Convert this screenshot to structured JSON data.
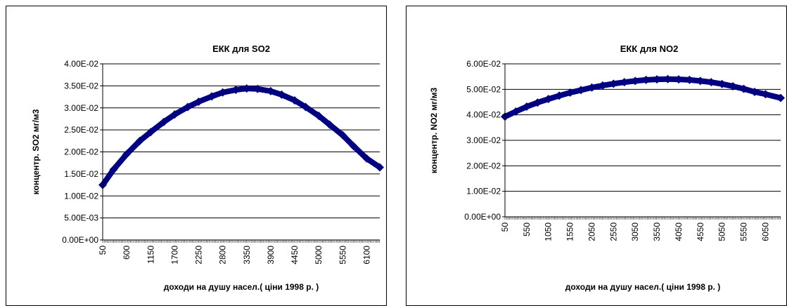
{
  "chart_data": [
    {
      "type": "scatter",
      "title": "ЕКК для SO2",
      "xlabel": "доходи на душу насел.( ціни 1998 р. )",
      "ylabel": "концентр. SO2  мг/м3",
      "y_ticks": [
        "0.00E+00",
        "5.00E-03",
        "1.00E-02",
        "1.50E-02",
        "2.00E-02",
        "2.50E-02",
        "3.00E-02",
        "3.50E-02",
        "4.00E-02"
      ],
      "x_ticks": [
        "50",
        "600",
        "1150",
        "1700",
        "2250",
        "2800",
        "3350",
        "3900",
        "4450",
        "5000",
        "5550",
        "6100"
      ],
      "ylim": [
        0,
        0.04
      ],
      "xlim": [
        50,
        6400
      ],
      "grid": true,
      "color": "#000080",
      "series": [
        {
          "x": [
            50,
            300,
            600,
            900,
            1150,
            1450,
            1700,
            2000,
            2250,
            2550,
            2800,
            3100,
            3350,
            3600,
            3900,
            4150,
            4450,
            4700,
            5000,
            5250,
            5550,
            5800,
            6100,
            6400
          ],
          "values": [
            0.0125,
            0.016,
            0.0195,
            0.0225,
            0.0245,
            0.0268,
            0.0285,
            0.0302,
            0.0314,
            0.0326,
            0.0335,
            0.0341,
            0.0344,
            0.0343,
            0.0338,
            0.033,
            0.0317,
            0.0302,
            0.0282,
            0.0262,
            0.0238,
            0.0213,
            0.0185,
            0.0165
          ]
        }
      ]
    },
    {
      "type": "scatter",
      "title": "ЕКК для NO2",
      "xlabel": "доходи на душу насел.( ціни 1998 р. )",
      "ylabel": "концентр. NO2  мг/м3",
      "y_ticks": [
        "0.00E+00",
        "1.00E-02",
        "2.00E-02",
        "3.00E-02",
        "4.00E-02",
        "5.00E-02",
        "6.00E-02"
      ],
      "x_ticks": [
        "50",
        "550",
        "1050",
        "1550",
        "2050",
        "2550",
        "3050",
        "3550",
        "4050",
        "4550",
        "5050",
        "5550",
        "6050"
      ],
      "ylim": [
        0,
        0.06
      ],
      "xlim": [
        50,
        6400
      ],
      "grid": true,
      "color": "#000080",
      "series": [
        {
          "x": [
            50,
            300,
            550,
            800,
            1050,
            1300,
            1550,
            1800,
            2050,
            2300,
            2550,
            2800,
            3050,
            3300,
            3550,
            3800,
            4050,
            4300,
            4550,
            4800,
            5050,
            5300,
            5550,
            5800,
            6050,
            6400
          ],
          "values": [
            0.0393,
            0.0413,
            0.0432,
            0.0448,
            0.0462,
            0.0475,
            0.0487,
            0.0497,
            0.0507,
            0.0515,
            0.0522,
            0.0528,
            0.0533,
            0.0537,
            0.0539,
            0.054,
            0.0539,
            0.0537,
            0.0533,
            0.0528,
            0.0521,
            0.0512,
            0.0502,
            0.049,
            0.0481,
            0.0466
          ]
        }
      ]
    }
  ]
}
